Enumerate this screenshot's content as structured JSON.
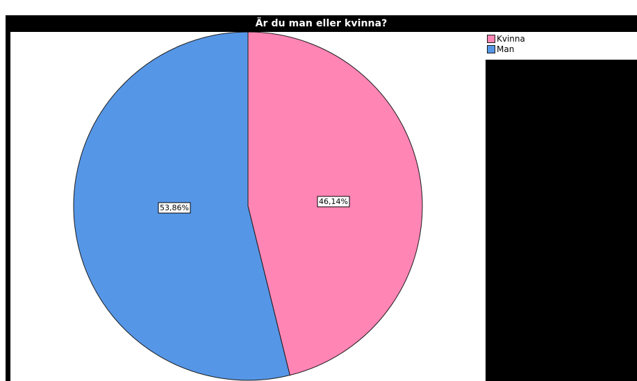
{
  "chart_data": {
    "type": "pie",
    "title": "Är du man eller kvinna?",
    "slices": [
      {
        "name": "Kvinna",
        "value": 46.14,
        "label": "46,14%",
        "color": "#ff85b5"
      },
      {
        "name": "Man",
        "value": 53.86,
        "label": "53,86%",
        "color": "#5696e6"
      }
    ],
    "start_angle_deg": 0,
    "direction": "clockwise",
    "legend": {
      "placement": "top-right",
      "entries": [
        "Kvinna",
        "Man"
      ]
    }
  }
}
